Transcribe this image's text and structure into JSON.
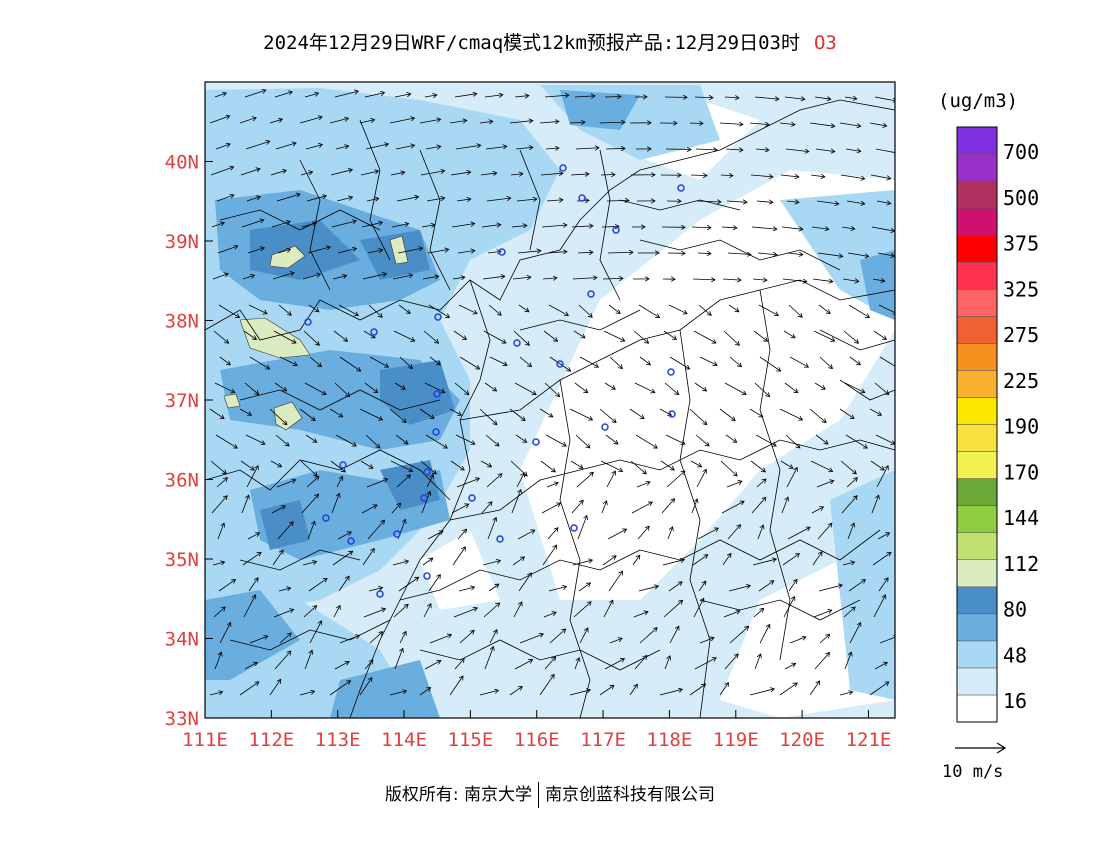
{
  "title": {
    "main": "2024年12月29日WRF/cmaq模式12km预报产品:12月29日03时",
    "species": "O3"
  },
  "map": {
    "lon_ticks": [
      "111E",
      "112E",
      "113E",
      "114E",
      "115E",
      "116E",
      "117E",
      "118E",
      "119E",
      "120E",
      "121E"
    ],
    "lat_ticks": [
      "40N",
      "39N",
      "38N",
      "37N",
      "36N",
      "35N",
      "34N",
      "33N"
    ],
    "lon_range": [
      111,
      121.4
    ],
    "lat_range": [
      33,
      41
    ],
    "axis_label_color": "#e04040"
  },
  "legend": {
    "unit": "(ug/m3)",
    "labels": [
      "700",
      "500",
      "375",
      "325",
      "275",
      "225",
      "190",
      "170",
      "144",
      "112",
      "80",
      "48",
      "16"
    ],
    "colors": [
      "#ffffff",
      "#d6ecf8",
      "#a8d8f4",
      "#6aaee0",
      "#4a8ec8",
      "#dcebc0",
      "#c0e070",
      "#90cc40",
      "#6aa838",
      "#f0f050",
      "#f8e040",
      "#ffe800",
      "#f8b030",
      "#f89020",
      "#f06030",
      "#ff6464",
      "#ff3050",
      "#ff0000",
      "#d01070",
      "#b03060",
      "#9a30c8",
      "#8030e0"
    ]
  },
  "wind_reference": {
    "label": "10 m/s"
  },
  "copyright": {
    "left": "版权所有: 南京大学",
    "right": "南京创蓝科技有限公司"
  }
}
